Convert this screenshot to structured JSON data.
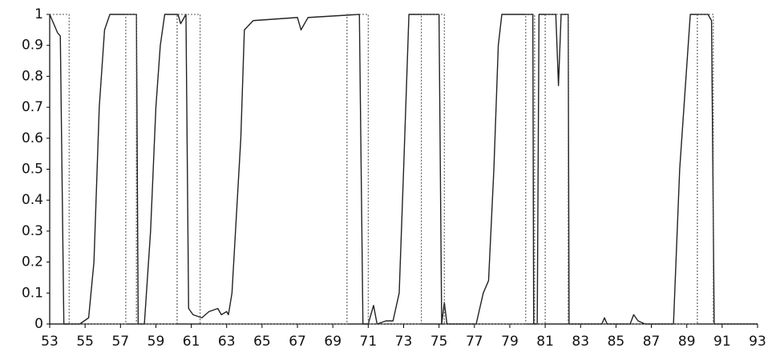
{
  "chart_data": {
    "type": "line",
    "xlim": [
      53,
      93
    ],
    "ylim": [
      0,
      1
    ],
    "xticks": [
      53,
      55,
      57,
      59,
      61,
      63,
      65,
      67,
      69,
      71,
      73,
      75,
      77,
      79,
      81,
      83,
      85,
      87,
      89,
      91,
      93
    ],
    "yticks": [
      0,
      0.1,
      0.2,
      0.3,
      0.4,
      0.5,
      0.6,
      0.7,
      0.8,
      0.9,
      1
    ],
    "grid": false,
    "series": [
      {
        "color": "#222222",
        "dash": false,
        "x": [
          53,
          53.45,
          53.6,
          53.8,
          54.7,
          55.2,
          55.5,
          55.8,
          56.1,
          56.4,
          57.9,
          58.0,
          58.35,
          58.7,
          59.0,
          59.25,
          59.5,
          60.25,
          60.4,
          60.7,
          60.85,
          61.1,
          61.6,
          62.0,
          62.5,
          62.7,
          63.0,
          63.1,
          63.3,
          63.8,
          64.0,
          64.5,
          67.0,
          67.2,
          67.6,
          70.5,
          70.7,
          71.0,
          71.3,
          71.5,
          72.0,
          72.4,
          72.75,
          73.0,
          73.3,
          75.0,
          75.15,
          75.3,
          75.45,
          77.1,
          77.5,
          77.8,
          78.1,
          78.35,
          78.55,
          80.3,
          80.35,
          80.55,
          80.65,
          81.6,
          81.75,
          81.9,
          82.3,
          82.35,
          84.2,
          84.35,
          84.5,
          85.8,
          86.0,
          86.25,
          86.65,
          88.25,
          88.6,
          89.2,
          90.2,
          90.4,
          90.55,
          93
        ],
        "values": [
          1,
          0.94,
          0.93,
          0,
          0,
          0.02,
          0.2,
          0.7,
          0.95,
          1,
          1,
          0,
          0,
          0.3,
          0.7,
          0.9,
          1,
          1,
          0.97,
          1,
          0.05,
          0.03,
          0.02,
          0.04,
          0.05,
          0.03,
          0.04,
          0.03,
          0.1,
          0.6,
          0.95,
          0.98,
          0.99,
          0.95,
          0.99,
          1,
          0,
          0,
          0.06,
          0,
          0.01,
          0.01,
          0.1,
          0.5,
          1,
          1,
          0,
          0.07,
          0,
          0,
          0.1,
          0.14,
          0.5,
          0.9,
          1,
          1,
          0,
          0,
          1,
          1,
          0.77,
          1,
          1,
          0,
          0,
          0.02,
          0,
          0,
          0.03,
          0.01,
          0,
          0,
          0.5,
          1,
          1,
          0.98,
          0,
          0
        ]
      },
      {
        "color": "#555555",
        "dash": true,
        "x": [
          53,
          54.1,
          54.1,
          57.3,
          57.3,
          57.9,
          57.9,
          60.2,
          60.2,
          61.5,
          61.5,
          69.8,
          69.8,
          71.0,
          71.0,
          74.0,
          74.0,
          75.3,
          75.3,
          79.9,
          79.9,
          80.4,
          80.4,
          81.0,
          81.0,
          82.3,
          82.3,
          89.6,
          89.6,
          90.5,
          90.5,
          93
        ],
        "values": [
          1,
          1,
          0,
          0,
          1,
          1,
          0,
          0,
          1,
          1,
          0,
          0,
          1,
          1,
          0,
          0,
          1,
          1,
          0,
          0,
          1,
          1,
          0,
          0,
          1,
          1,
          0,
          0,
          1,
          1,
          0,
          0
        ]
      }
    ]
  }
}
